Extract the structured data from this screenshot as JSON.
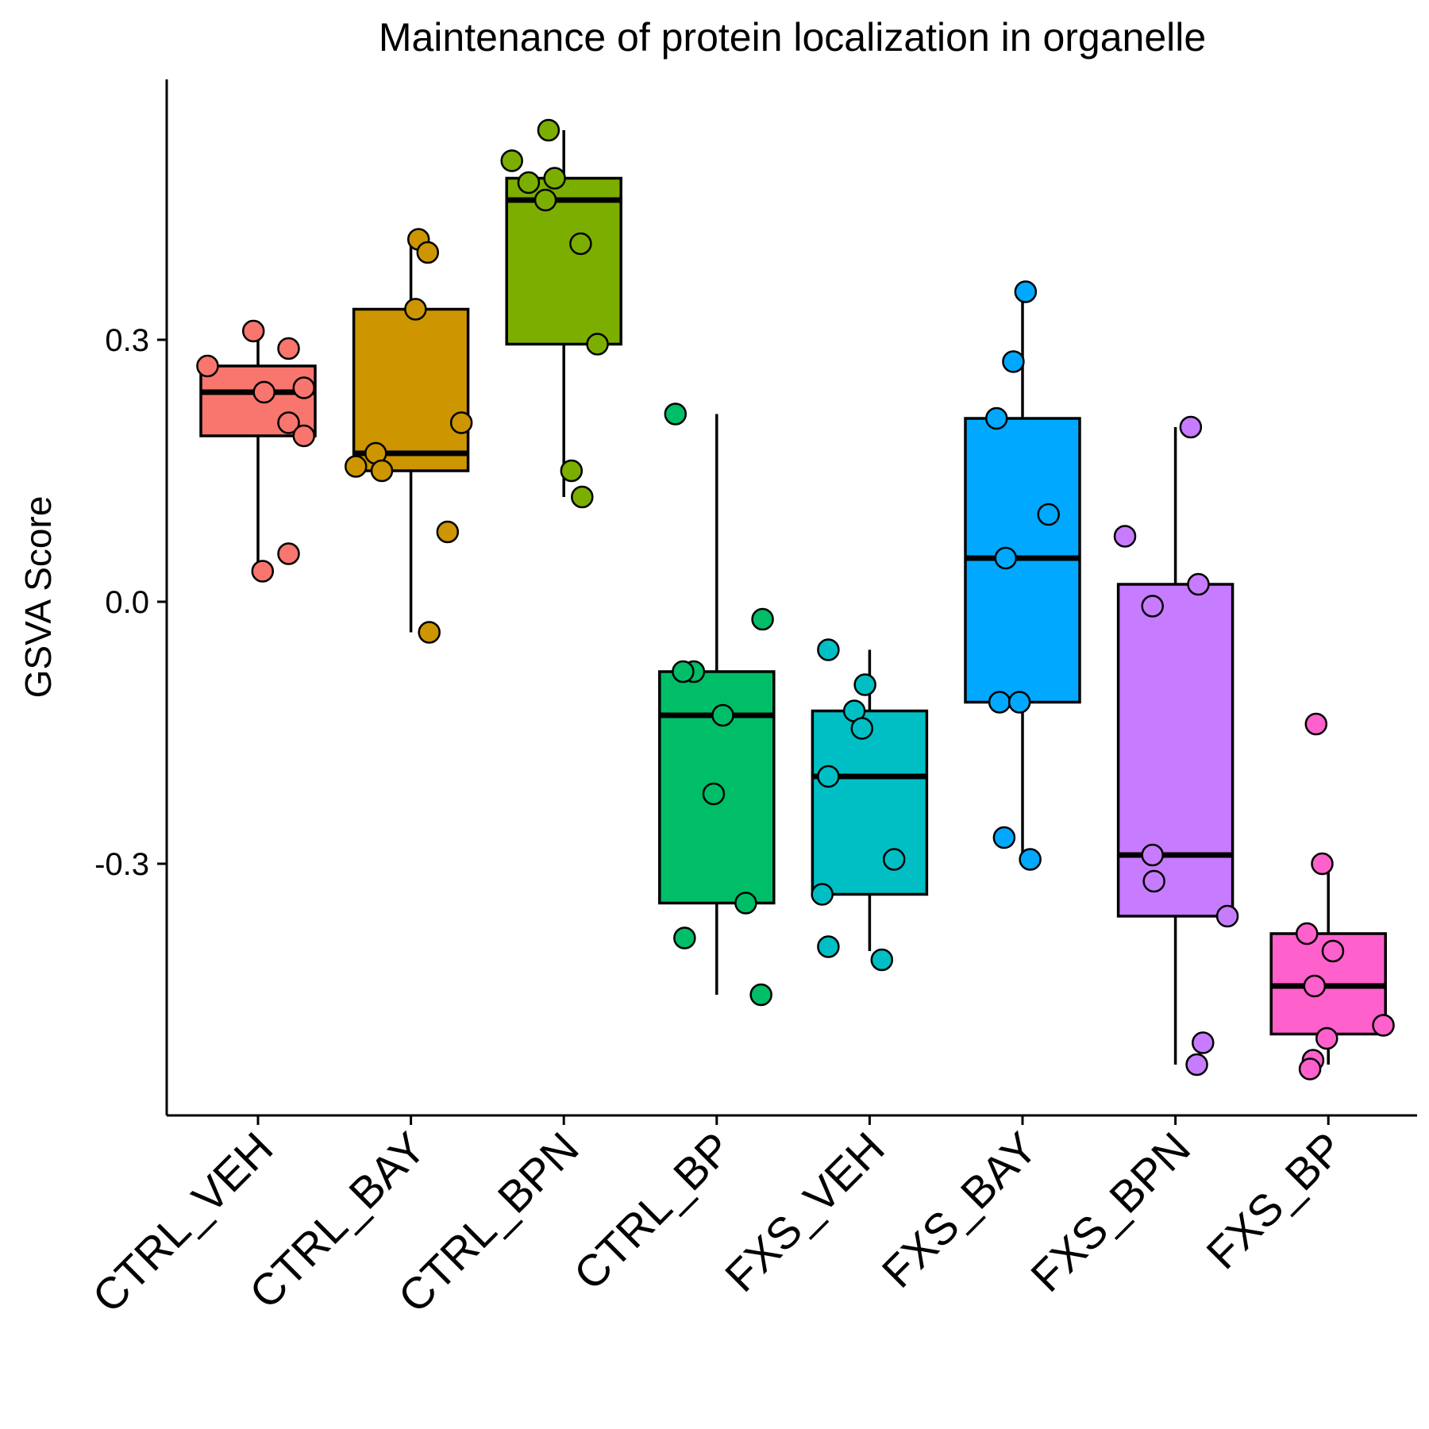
{
  "chart_data": {
    "type": "boxplot",
    "title": "Maintenance of protein localization in organelle",
    "xlabel": "",
    "ylabel": "GSVA Score",
    "ylim": [
      -0.58,
      0.59
    ],
    "yticks": [
      0.3,
      0.0,
      -0.3
    ],
    "ytick_labels": [
      "0.3",
      "0.0",
      "-0.3"
    ],
    "grid": false,
    "legend": "none",
    "categories": [
      "CTRL_VEH",
      "CTRL_BAY",
      "CTRL_BPN",
      "CTRL_BP",
      "FXS_VEH",
      "FXS_BAY",
      "FXS_BPN",
      "FXS_BP"
    ],
    "colors": [
      "#F8766D",
      "#CD9600",
      "#7CAE00",
      "#00BE67",
      "#00BFC4",
      "#00A9FF",
      "#C77CFF",
      "#FF61CC"
    ],
    "series": [
      {
        "stats": {
          "min": 0.03,
          "q1": 0.19,
          "median": 0.24,
          "q3": 0.27,
          "max": 0.31
        },
        "points": [
          [
            -0.03,
            0.31
          ],
          [
            -0.33,
            0.27
          ],
          [
            0.2,
            0.29
          ],
          [
            0.3,
            0.245
          ],
          [
            0.04,
            0.24
          ],
          [
            0.2,
            0.205
          ],
          [
            0.3,
            0.19
          ],
          [
            0.2,
            0.055
          ],
          [
            0.03,
            0.035
          ]
        ]
      },
      {
        "stats": {
          "min": -0.035,
          "q1": 0.15,
          "median": 0.17,
          "q3": 0.335,
          "max": 0.415
        },
        "points": [
          [
            0.05,
            0.415
          ],
          [
            0.11,
            0.4
          ],
          [
            0.03,
            0.335
          ],
          [
            0.33,
            0.205
          ],
          [
            -0.23,
            0.17
          ],
          [
            -0.36,
            0.155
          ],
          [
            -0.19,
            0.15
          ],
          [
            0.24,
            0.08
          ],
          [
            0.12,
            -0.035
          ]
        ]
      },
      {
        "stats": {
          "min": 0.12,
          "q1": 0.295,
          "median": 0.46,
          "q3": 0.485,
          "max": 0.54
        },
        "points": [
          [
            -0.1,
            0.54
          ],
          [
            -0.34,
            0.505
          ],
          [
            -0.06,
            0.485
          ],
          [
            -0.23,
            0.48
          ],
          [
            -0.12,
            0.46
          ],
          [
            0.11,
            0.41
          ],
          [
            0.22,
            0.295
          ],
          [
            0.05,
            0.15
          ],
          [
            0.12,
            0.12
          ]
        ]
      },
      {
        "stats": {
          "min": -0.45,
          "q1": -0.345,
          "median": -0.13,
          "q3": -0.08,
          "max": 0.215
        },
        "points": [
          [
            -0.27,
            0.215
          ],
          [
            0.3,
            -0.02
          ],
          [
            -0.15,
            -0.08
          ],
          [
            -0.22,
            -0.08
          ],
          [
            0.04,
            -0.13
          ],
          [
            -0.02,
            -0.22
          ],
          [
            0.19,
            -0.345
          ],
          [
            -0.21,
            -0.385
          ],
          [
            0.29,
            -0.45
          ]
        ]
      },
      {
        "stats": {
          "min": -0.4,
          "q1": -0.335,
          "median": -0.2,
          "q3": -0.125,
          "max": -0.055
        },
        "points": [
          [
            -0.27,
            -0.055
          ],
          [
            -0.03,
            -0.095
          ],
          [
            -0.1,
            -0.125
          ],
          [
            -0.05,
            -0.145
          ],
          [
            -0.27,
            -0.2
          ],
          [
            0.16,
            -0.295
          ],
          [
            -0.31,
            -0.335
          ],
          [
            -0.27,
            -0.395
          ],
          [
            0.08,
            -0.41
          ]
        ]
      },
      {
        "stats": {
          "min": -0.295,
          "q1": -0.115,
          "median": 0.05,
          "q3": 0.21,
          "max": 0.355
        },
        "points": [
          [
            0.02,
            0.355
          ],
          [
            -0.06,
            0.275
          ],
          [
            -0.17,
            0.21
          ],
          [
            0.17,
            0.1
          ],
          [
            -0.11,
            0.05
          ],
          [
            -0.15,
            -0.115
          ],
          [
            -0.02,
            -0.115
          ],
          [
            -0.12,
            -0.27
          ],
          [
            0.05,
            -0.295
          ]
        ]
      },
      {
        "stats": {
          "min": -0.53,
          "q1": -0.36,
          "median": -0.29,
          "q3": 0.02,
          "max": 0.2
        },
        "points": [
          [
            0.1,
            0.2
          ],
          [
            -0.33,
            0.075
          ],
          [
            0.15,
            0.02
          ],
          [
            -0.15,
            -0.005
          ],
          [
            -0.15,
            -0.29
          ],
          [
            -0.14,
            -0.32
          ],
          [
            0.34,
            -0.36
          ],
          [
            0.18,
            -0.505
          ],
          [
            0.14,
            -0.53
          ]
        ]
      },
      {
        "stats": {
          "min": -0.53,
          "q1": -0.495,
          "median": -0.44,
          "q3": -0.38,
          "max": -0.3
        },
        "points": [
          [
            -0.08,
            -0.14
          ],
          [
            -0.04,
            -0.3
          ],
          [
            -0.14,
            -0.38
          ],
          [
            0.03,
            -0.4
          ],
          [
            -0.09,
            -0.44
          ],
          [
            0.36,
            -0.485
          ],
          [
            -0.01,
            -0.5
          ],
          [
            -0.1,
            -0.525
          ],
          [
            -0.12,
            -0.535
          ]
        ]
      }
    ]
  }
}
